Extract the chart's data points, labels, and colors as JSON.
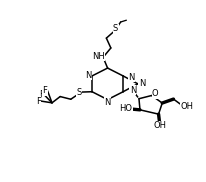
{
  "bg": "#ffffff",
  "lc": "#000000",
  "lw": 1.1,
  "fs": 6.0,
  "figsize": [
    2.07,
    1.82
  ],
  "dpi": 100,
  "xlim": [
    0,
    10
  ],
  "ylim": [
    0,
    10
  ],
  "purine_ox": 5.2,
  "purine_oy": 5.4,
  "purine_scale": 0.88
}
